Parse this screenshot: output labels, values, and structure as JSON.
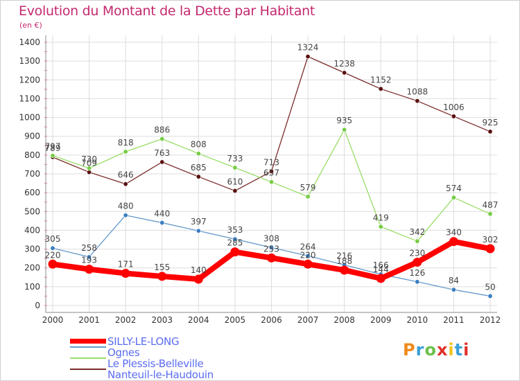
{
  "header": {
    "title": "Evolution du Montant de la Dette par Habitant",
    "unit": "(en €)"
  },
  "logo": {
    "text": "Proxiti",
    "colors": [
      "#f08a1c",
      "#3aa0d8",
      "#6cc04a",
      "#e0312a",
      "#f2c21a",
      "#3aa0d8",
      "#e0312a"
    ]
  },
  "chart_data": {
    "type": "line",
    "title": "Evolution du Montant de la Dette par Habitant",
    "subtitle": "(en €)",
    "xlabel": "",
    "ylabel": "",
    "x": [
      "2000",
      "2001",
      "2002",
      "2003",
      "2004",
      "2005",
      "2006",
      "2007",
      "2008",
      "2009",
      "2010",
      "2011",
      "2012"
    ],
    "ylim": [
      0,
      1400
    ],
    "yticks": [
      0,
      100,
      200,
      300,
      400,
      500,
      600,
      700,
      800,
      900,
      1000,
      1100,
      1200,
      1300,
      1400
    ],
    "grid": true,
    "legend_position": "bottom-left",
    "series": [
      {
        "name": "Nanteuil-le-Haudouin",
        "color": "#7a2a2a",
        "marker": "#5a1010",
        "width": "thin",
        "values": [
          789,
          709,
          646,
          763,
          685,
          610,
          713,
          1324,
          1238,
          1152,
          1088,
          1006,
          925
        ]
      },
      {
        "name": "Le Plessis-Belleville",
        "color": "#99dd66",
        "marker": "#77cc44",
        "width": "thin",
        "values": [
          797,
          730,
          818,
          886,
          808,
          733,
          657,
          579,
          935,
          419,
          342,
          574,
          487
        ]
      },
      {
        "name": "Ognes",
        "color": "#6699cc",
        "marker": "#3a7ec0",
        "width": "thin",
        "values": [
          305,
          258,
          480,
          440,
          397,
          353,
          308,
          264,
          216,
          166,
          126,
          84,
          50
        ]
      },
      {
        "name": "SILLY-LE-LONG",
        "color": "#ff0000",
        "marker": "#ff0000",
        "width": "thick",
        "values": [
          220,
          193,
          171,
          155,
          140,
          285,
          253,
          220,
          188,
          144,
          230,
          340,
          302
        ]
      }
    ]
  }
}
